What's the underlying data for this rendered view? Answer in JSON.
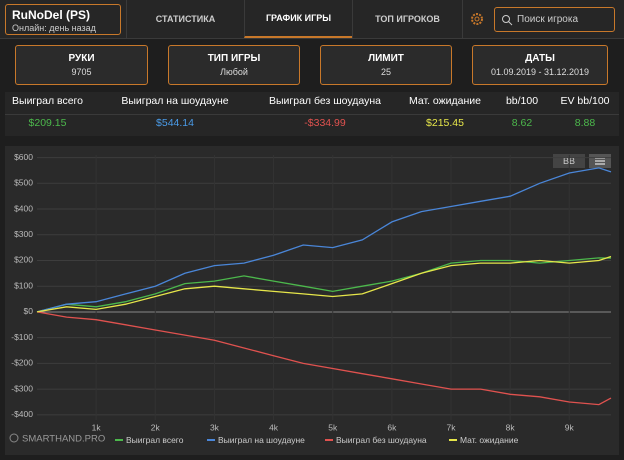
{
  "header": {
    "brand": "RuNoDel (PS)",
    "status": "Онлайн: день назад",
    "tabs": [
      "СТАТИСТИКА",
      "ГРАФИК ИГРЫ",
      "ТОП ИГРОКОВ"
    ],
    "search_placeholder": "Поиск игрока"
  },
  "filters": [
    {
      "label": "РУКИ",
      "value": "9705"
    },
    {
      "label": "ТИП ИГРЫ",
      "value": "Любой"
    },
    {
      "label": "ЛИМИТ",
      "value": "25"
    },
    {
      "label": "ДАТЫ",
      "value": "01.09.2019 - 31.12.2019"
    }
  ],
  "stats": {
    "headers": [
      "Выиграл всего",
      "Выиграл на шоудауне",
      "Выиграл без шоудауна",
      "Мат. ожидание",
      "bb/100",
      "EV bb/100"
    ],
    "values": [
      "$209.15",
      "$544.14",
      "-$334.99",
      "$215.45",
      "8.62",
      "8.88"
    ]
  },
  "chart_data": {
    "type": "line",
    "logo": "SMARTHAND.PRO",
    "unit_button": "BB",
    "x": [
      0,
      500,
      1000,
      1500,
      2000,
      2500,
      3000,
      3500,
      4000,
      4500,
      5000,
      5500,
      6000,
      6500,
      7000,
      7500,
      8000,
      8500,
      9000,
      9500,
      9705
    ],
    "series": [
      {
        "name": "Выиграл всего",
        "color": "#4cb84c",
        "values": [
          0,
          30,
          20,
          40,
          70,
          110,
          120,
          140,
          120,
          100,
          80,
          100,
          120,
          150,
          190,
          200,
          200,
          190,
          200,
          210,
          209.15
        ]
      },
      {
        "name": "Выиграл на шоудауне",
        "color": "#4a86d8",
        "values": [
          0,
          30,
          40,
          70,
          100,
          150,
          180,
          190,
          220,
          260,
          250,
          280,
          350,
          390,
          410,
          430,
          450,
          500,
          540,
          560,
          544.14
        ]
      },
      {
        "name": "Выиграл без шоудауна",
        "color": "#e0524f",
        "values": [
          0,
          -20,
          -30,
          -50,
          -70,
          -90,
          -110,
          -140,
          -170,
          -200,
          -220,
          -240,
          -260,
          -280,
          -300,
          -300,
          -320,
          -330,
          -350,
          -360,
          -334.99
        ]
      },
      {
        "name": "Мат. ожидание",
        "color": "#e6e64a",
        "values": [
          0,
          20,
          10,
          30,
          60,
          90,
          100,
          90,
          80,
          70,
          60,
          70,
          110,
          150,
          180,
          190,
          190,
          200,
          190,
          200,
          215.45
        ]
      }
    ],
    "xlim": [
      0,
      9705
    ],
    "ylim": [
      -420,
      610
    ],
    "xticks": [
      {
        "value": 1000,
        "label": "1k"
      },
      {
        "value": 2000,
        "label": "2k"
      },
      {
        "value": 3000,
        "label": "3k"
      },
      {
        "value": 4000,
        "label": "4k"
      },
      {
        "value": 5000,
        "label": "5k"
      },
      {
        "value": 6000,
        "label": "6k"
      },
      {
        "value": 7000,
        "label": "7k"
      },
      {
        "value": 8000,
        "label": "8k"
      },
      {
        "value": 9000,
        "label": "9k"
      }
    ],
    "yticks": [
      {
        "value": -400,
        "label": "-$400"
      },
      {
        "value": -300,
        "label": "-$300"
      },
      {
        "value": -200,
        "label": "-$200"
      },
      {
        "value": -100,
        "label": "-$100"
      },
      {
        "value": 0,
        "label": "$0"
      },
      {
        "value": 100,
        "label": "$100"
      },
      {
        "value": 200,
        "label": "$200"
      },
      {
        "value": 300,
        "label": "$300"
      },
      {
        "value": 400,
        "label": "$400"
      },
      {
        "value": 500,
        "label": "$500"
      },
      {
        "value": 600,
        "label": "$600"
      }
    ],
    "grid": true,
    "legend": "bottom"
  }
}
